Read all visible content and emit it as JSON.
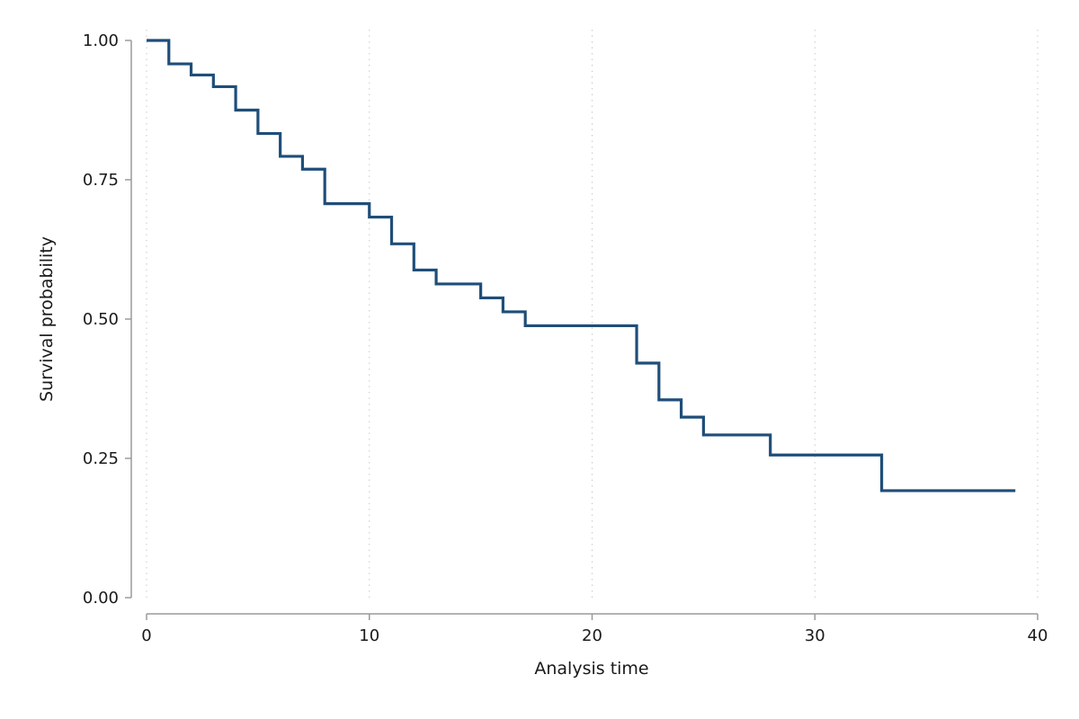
{
  "chart_data": {
    "type": "line",
    "step": true,
    "xlabel": "Analysis time",
    "ylabel": "Survival probability",
    "xlim": [
      0,
      40
    ],
    "ylim": [
      0,
      1
    ],
    "x_ticks": [
      "0",
      "10",
      "20",
      "30",
      "40"
    ],
    "y_ticks": [
      "0.00",
      "0.25",
      "0.50",
      "0.75",
      "1.00"
    ],
    "grid": {
      "vertical": true,
      "horizontal": false,
      "style": "dotted"
    },
    "series": [
      {
        "color": "#1f4e79",
        "x": [
          0,
          1,
          2,
          3,
          4,
          5,
          6,
          7,
          8,
          10,
          11,
          12,
          13,
          15,
          16,
          17,
          22,
          23,
          24,
          25,
          28,
          33,
          39
        ],
        "y": [
          1.0,
          0.958,
          0.938,
          0.917,
          0.875,
          0.833,
          0.792,
          0.769,
          0.707,
          0.683,
          0.635,
          0.588,
          0.563,
          0.538,
          0.513,
          0.488,
          0.421,
          0.355,
          0.324,
          0.292,
          0.256,
          0.192,
          0.192
        ]
      }
    ]
  }
}
